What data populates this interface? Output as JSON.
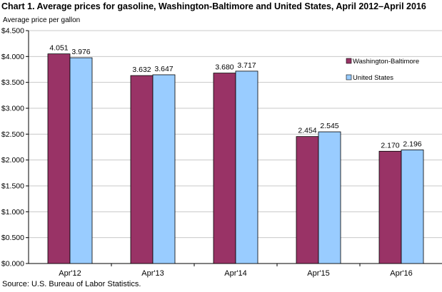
{
  "chart_data": {
    "type": "bar",
    "title": "Chart 1. Average prices for gasoline, Washington-Baltimore and United States, April 2012–April 2016",
    "ylabel": "Average price per gallon",
    "xlabel": "",
    "categories": [
      "Apr'12",
      "Apr'13",
      "Apr'14",
      "Apr'15",
      "Apr'16"
    ],
    "series": [
      {
        "name": "Washington-Baltimore",
        "values": [
          4.051,
          3.632,
          3.68,
          2.454,
          2.17
        ],
        "labels": [
          "4.051",
          "3.632",
          "3.680",
          "2.454",
          "2.170"
        ],
        "color": "#993366"
      },
      {
        "name": "United States",
        "values": [
          3.976,
          3.647,
          3.717,
          2.545,
          2.196
        ],
        "labels": [
          "3.976",
          "3.647",
          "3.717",
          "2.545",
          "2.196"
        ],
        "color": "#99ccff"
      }
    ],
    "yticks": [
      0,
      0.5,
      1.0,
      1.5,
      2.0,
      2.5,
      3.0,
      3.5,
      4.0,
      4.5
    ],
    "ytick_labels": [
      "$0.000",
      "$0.500",
      "$1.000",
      "$1.500",
      "$2.000",
      "$2.500",
      "$3.000",
      "$3.500",
      "$4.000",
      "$4.500"
    ],
    "ylim": [
      0,
      4.5
    ],
    "grid": true,
    "legend_position": "right"
  },
  "source": "Source: U.S. Bureau of Labor Statistics."
}
